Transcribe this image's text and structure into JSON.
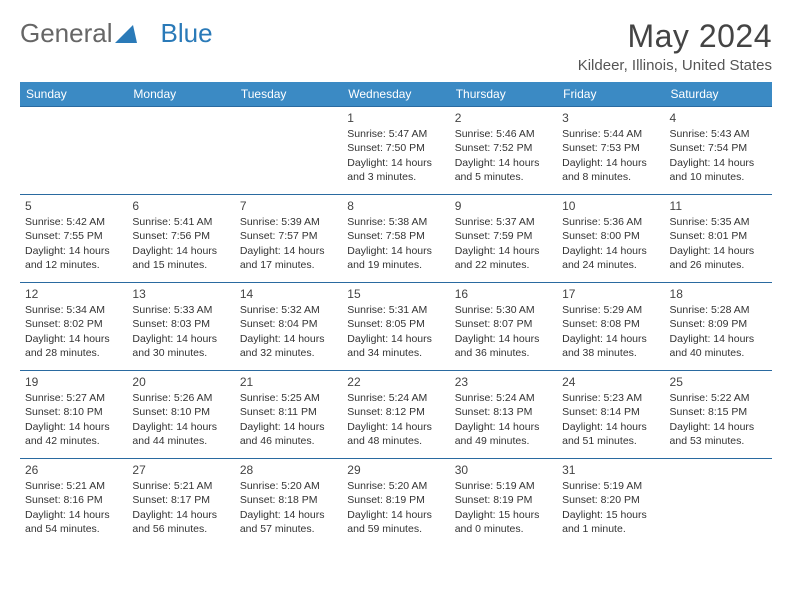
{
  "brand": {
    "part1": "General",
    "part2": "Blue"
  },
  "title": "May 2024",
  "location": "Kildeer, Illinois, United States",
  "colors": {
    "header_bg": "#3b8ac4",
    "border": "#2a6aa0",
    "brand_blue": "#2a7ab8"
  },
  "weekdays": [
    "Sunday",
    "Monday",
    "Tuesday",
    "Wednesday",
    "Thursday",
    "Friday",
    "Saturday"
  ],
  "weeks": [
    [
      null,
      null,
      null,
      {
        "n": "1",
        "sr": "Sunrise: 5:47 AM",
        "ss": "Sunset: 7:50 PM",
        "d1": "Daylight: 14 hours",
        "d2": "and 3 minutes."
      },
      {
        "n": "2",
        "sr": "Sunrise: 5:46 AM",
        "ss": "Sunset: 7:52 PM",
        "d1": "Daylight: 14 hours",
        "d2": "and 5 minutes."
      },
      {
        "n": "3",
        "sr": "Sunrise: 5:44 AM",
        "ss": "Sunset: 7:53 PM",
        "d1": "Daylight: 14 hours",
        "d2": "and 8 minutes."
      },
      {
        "n": "4",
        "sr": "Sunrise: 5:43 AM",
        "ss": "Sunset: 7:54 PM",
        "d1": "Daylight: 14 hours",
        "d2": "and 10 minutes."
      }
    ],
    [
      {
        "n": "5",
        "sr": "Sunrise: 5:42 AM",
        "ss": "Sunset: 7:55 PM",
        "d1": "Daylight: 14 hours",
        "d2": "and 12 minutes."
      },
      {
        "n": "6",
        "sr": "Sunrise: 5:41 AM",
        "ss": "Sunset: 7:56 PM",
        "d1": "Daylight: 14 hours",
        "d2": "and 15 minutes."
      },
      {
        "n": "7",
        "sr": "Sunrise: 5:39 AM",
        "ss": "Sunset: 7:57 PM",
        "d1": "Daylight: 14 hours",
        "d2": "and 17 minutes."
      },
      {
        "n": "8",
        "sr": "Sunrise: 5:38 AM",
        "ss": "Sunset: 7:58 PM",
        "d1": "Daylight: 14 hours",
        "d2": "and 19 minutes."
      },
      {
        "n": "9",
        "sr": "Sunrise: 5:37 AM",
        "ss": "Sunset: 7:59 PM",
        "d1": "Daylight: 14 hours",
        "d2": "and 22 minutes."
      },
      {
        "n": "10",
        "sr": "Sunrise: 5:36 AM",
        "ss": "Sunset: 8:00 PM",
        "d1": "Daylight: 14 hours",
        "d2": "and 24 minutes."
      },
      {
        "n": "11",
        "sr": "Sunrise: 5:35 AM",
        "ss": "Sunset: 8:01 PM",
        "d1": "Daylight: 14 hours",
        "d2": "and 26 minutes."
      }
    ],
    [
      {
        "n": "12",
        "sr": "Sunrise: 5:34 AM",
        "ss": "Sunset: 8:02 PM",
        "d1": "Daylight: 14 hours",
        "d2": "and 28 minutes."
      },
      {
        "n": "13",
        "sr": "Sunrise: 5:33 AM",
        "ss": "Sunset: 8:03 PM",
        "d1": "Daylight: 14 hours",
        "d2": "and 30 minutes."
      },
      {
        "n": "14",
        "sr": "Sunrise: 5:32 AM",
        "ss": "Sunset: 8:04 PM",
        "d1": "Daylight: 14 hours",
        "d2": "and 32 minutes."
      },
      {
        "n": "15",
        "sr": "Sunrise: 5:31 AM",
        "ss": "Sunset: 8:05 PM",
        "d1": "Daylight: 14 hours",
        "d2": "and 34 minutes."
      },
      {
        "n": "16",
        "sr": "Sunrise: 5:30 AM",
        "ss": "Sunset: 8:07 PM",
        "d1": "Daylight: 14 hours",
        "d2": "and 36 minutes."
      },
      {
        "n": "17",
        "sr": "Sunrise: 5:29 AM",
        "ss": "Sunset: 8:08 PM",
        "d1": "Daylight: 14 hours",
        "d2": "and 38 minutes."
      },
      {
        "n": "18",
        "sr": "Sunrise: 5:28 AM",
        "ss": "Sunset: 8:09 PM",
        "d1": "Daylight: 14 hours",
        "d2": "and 40 minutes."
      }
    ],
    [
      {
        "n": "19",
        "sr": "Sunrise: 5:27 AM",
        "ss": "Sunset: 8:10 PM",
        "d1": "Daylight: 14 hours",
        "d2": "and 42 minutes."
      },
      {
        "n": "20",
        "sr": "Sunrise: 5:26 AM",
        "ss": "Sunset: 8:10 PM",
        "d1": "Daylight: 14 hours",
        "d2": "and 44 minutes."
      },
      {
        "n": "21",
        "sr": "Sunrise: 5:25 AM",
        "ss": "Sunset: 8:11 PM",
        "d1": "Daylight: 14 hours",
        "d2": "and 46 minutes."
      },
      {
        "n": "22",
        "sr": "Sunrise: 5:24 AM",
        "ss": "Sunset: 8:12 PM",
        "d1": "Daylight: 14 hours",
        "d2": "and 48 minutes."
      },
      {
        "n": "23",
        "sr": "Sunrise: 5:24 AM",
        "ss": "Sunset: 8:13 PM",
        "d1": "Daylight: 14 hours",
        "d2": "and 49 minutes."
      },
      {
        "n": "24",
        "sr": "Sunrise: 5:23 AM",
        "ss": "Sunset: 8:14 PM",
        "d1": "Daylight: 14 hours",
        "d2": "and 51 minutes."
      },
      {
        "n": "25",
        "sr": "Sunrise: 5:22 AM",
        "ss": "Sunset: 8:15 PM",
        "d1": "Daylight: 14 hours",
        "d2": "and 53 minutes."
      }
    ],
    [
      {
        "n": "26",
        "sr": "Sunrise: 5:21 AM",
        "ss": "Sunset: 8:16 PM",
        "d1": "Daylight: 14 hours",
        "d2": "and 54 minutes."
      },
      {
        "n": "27",
        "sr": "Sunrise: 5:21 AM",
        "ss": "Sunset: 8:17 PM",
        "d1": "Daylight: 14 hours",
        "d2": "and 56 minutes."
      },
      {
        "n": "28",
        "sr": "Sunrise: 5:20 AM",
        "ss": "Sunset: 8:18 PM",
        "d1": "Daylight: 14 hours",
        "d2": "and 57 minutes."
      },
      {
        "n": "29",
        "sr": "Sunrise: 5:20 AM",
        "ss": "Sunset: 8:19 PM",
        "d1": "Daylight: 14 hours",
        "d2": "and 59 minutes."
      },
      {
        "n": "30",
        "sr": "Sunrise: 5:19 AM",
        "ss": "Sunset: 8:19 PM",
        "d1": "Daylight: 15 hours",
        "d2": "and 0 minutes."
      },
      {
        "n": "31",
        "sr": "Sunrise: 5:19 AM",
        "ss": "Sunset: 8:20 PM",
        "d1": "Daylight: 15 hours",
        "d2": "and 1 minute."
      },
      null
    ]
  ]
}
